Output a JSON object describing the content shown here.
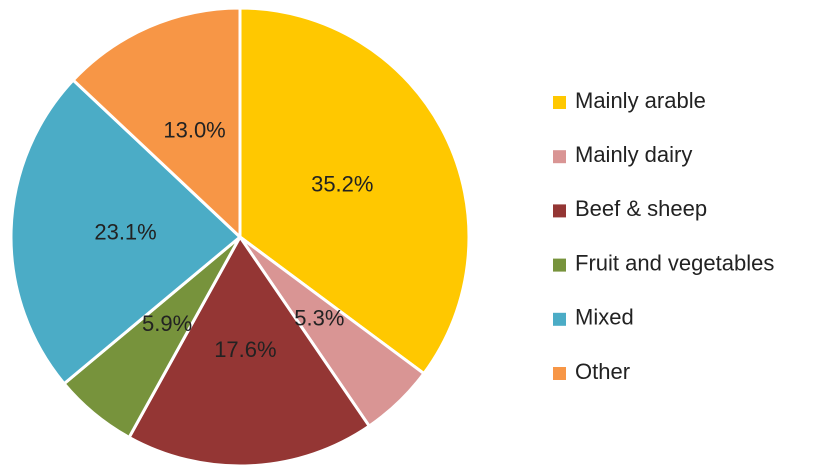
{
  "chart_data": {
    "type": "pie",
    "categories": [
      "Mainly arable",
      "Mainly dairy",
      "Beef & sheep",
      "Fruit and vegetables",
      "Mixed",
      "Other"
    ],
    "values": [
      35.2,
      5.3,
      17.6,
      5.9,
      23.1,
      13.0
    ],
    "value_labels": [
      "35.2%",
      "5.3%",
      "17.6%",
      "5.9%",
      "23.1%",
      "13.0%"
    ],
    "colors": [
      "#FFC800",
      "#D99594",
      "#943634",
      "#77933C",
      "#4BACC6",
      "#F79646"
    ],
    "legend": "right"
  }
}
